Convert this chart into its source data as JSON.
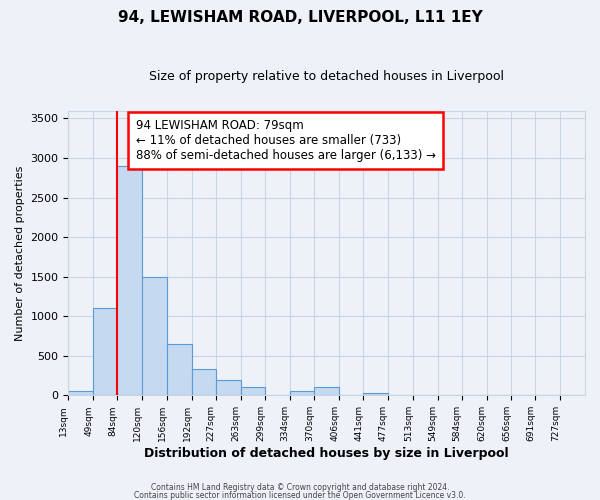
{
  "title": "94, LEWISHAM ROAD, LIVERPOOL, L11 1EY",
  "subtitle": "Size of property relative to detached houses in Liverpool",
  "xlabel": "Distribution of detached houses by size in Liverpool",
  "ylabel": "Number of detached properties",
  "bin_labels": [
    "13sqm",
    "49sqm",
    "84sqm",
    "120sqm",
    "156sqm",
    "192sqm",
    "227sqm",
    "263sqm",
    "299sqm",
    "334sqm",
    "370sqm",
    "406sqm",
    "441sqm",
    "477sqm",
    "513sqm",
    "549sqm",
    "584sqm",
    "620sqm",
    "656sqm",
    "691sqm",
    "727sqm"
  ],
  "bin_edges": [
    13,
    49,
    84,
    120,
    156,
    192,
    227,
    263,
    299,
    334,
    370,
    406,
    441,
    477,
    513,
    549,
    584,
    620,
    656,
    691,
    727,
    763
  ],
  "bar_heights": [
    50,
    1100,
    2900,
    1500,
    650,
    330,
    195,
    100,
    0,
    55,
    100,
    0,
    30,
    0,
    0,
    0,
    0,
    0,
    0,
    0,
    0
  ],
  "bar_color": "#c5d9f0",
  "bar_edgecolor": "#5b9bd5",
  "red_line_x": 84,
  "ylim": [
    0,
    3600
  ],
  "yticks": [
    0,
    500,
    1000,
    1500,
    2000,
    2500,
    3000,
    3500
  ],
  "annotation_title": "94 LEWISHAM ROAD: 79sqm",
  "annotation_line1": "← 11% of detached houses are smaller (733)",
  "annotation_line2": "88% of semi-detached houses are larger (6,133) →",
  "footer1": "Contains HM Land Registry data © Crown copyright and database right 2024.",
  "footer2": "Contains public sector information licensed under the Open Government Licence v3.0.",
  "background_color": "#eef2f8",
  "plot_bg_color": "#eef2f8",
  "grid_color": "#c8d4e8"
}
